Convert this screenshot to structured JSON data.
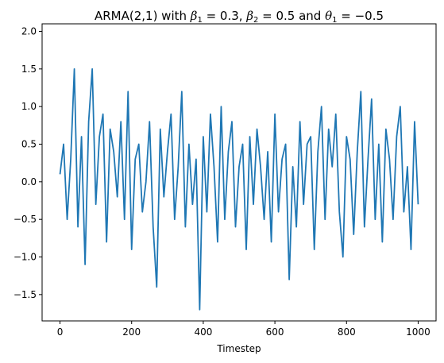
{
  "chart_data": {
    "type": "line",
    "title": {
      "prefix": "ARMA(2,1) with ",
      "b1_sym": "β",
      "b1_sub": "1",
      "b1_val": " = 0.3, ",
      "b2_sym": "β",
      "b2_sub": "2",
      "b2_val": " = 0.5 and ",
      "t1_sym": "θ",
      "t1_sub": "1",
      "t1_val": " = −0.5"
    },
    "xlabel": "Timestep",
    "ylabel": "",
    "xlim": [
      -50,
      1050
    ],
    "ylim": [
      -1.85,
      2.1
    ],
    "xticks": [
      0,
      200,
      400,
      600,
      800,
      1000
    ],
    "xtick_labels": [
      "0",
      "200",
      "400",
      "600",
      "800",
      "1000"
    ],
    "yticks": [
      -1.5,
      -1.0,
      -0.5,
      0.0,
      0.5,
      1.0,
      1.5,
      2.0
    ],
    "ytick_labels": [
      "−1.5",
      "−1.0",
      "−0.5",
      "0.0",
      "0.5",
      "1.0",
      "1.5",
      "2.0"
    ],
    "grid": false,
    "series": [
      {
        "color": "#1f77b4",
        "x_start": 0,
        "x_step": 10,
        "values": [
          0.1,
          0.5,
          -0.5,
          0.3,
          1.5,
          -0.6,
          0.6,
          -1.1,
          0.8,
          1.5,
          -0.3,
          0.6,
          0.9,
          -0.8,
          0.7,
          0.4,
          -0.2,
          0.8,
          -0.5,
          1.2,
          -0.9,
          0.3,
          0.5,
          -0.4,
          0.0,
          0.8,
          -0.6,
          -1.4,
          0.7,
          -0.2,
          0.4,
          0.9,
          -0.5,
          0.2,
          1.2,
          -0.6,
          0.5,
          -0.3,
          0.3,
          -1.7,
          0.6,
          -0.4,
          0.9,
          0.2,
          -0.8,
          1.0,
          -0.5,
          0.4,
          0.8,
          -0.6,
          0.2,
          0.5,
          -0.9,
          0.6,
          -0.3,
          0.7,
          0.2,
          -0.5,
          0.4,
          -0.8,
          0.9,
          -0.4,
          0.3,
          0.5,
          -1.3,
          0.2,
          -0.6,
          0.8,
          -0.3,
          0.5,
          0.6,
          -0.9,
          0.4,
          1.0,
          -0.5,
          0.7,
          0.2,
          0.9,
          -0.4,
          -1.0,
          0.6,
          0.3,
          -0.7,
          0.4,
          1.2,
          -0.6,
          0.3,
          1.1,
          -0.5,
          0.5,
          -0.8,
          0.7,
          0.3,
          -0.5,
          0.6,
          1.0,
          -0.4,
          0.2,
          -0.9,
          0.8,
          -0.3
        ]
      }
    ]
  }
}
